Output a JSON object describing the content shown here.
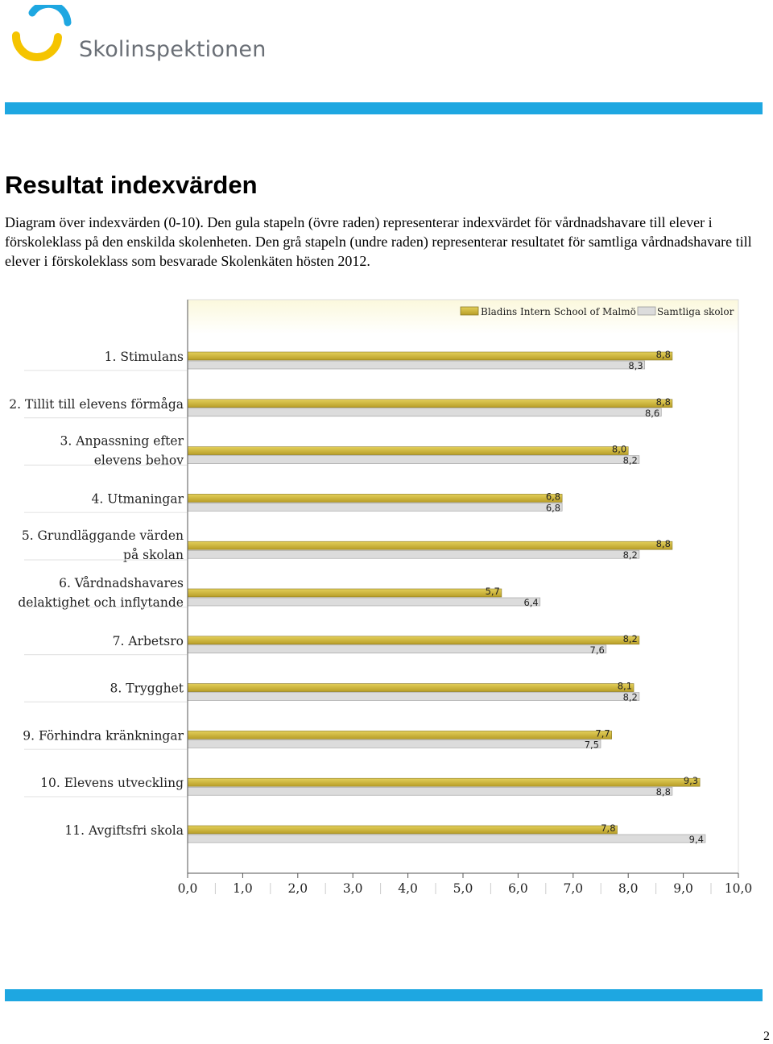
{
  "header": {
    "logo_text": "Skolinspektionen",
    "logo_icon": "skolinspektionen-logo-icon",
    "brand_blue": "#1ea7e1",
    "brand_yellow": "#f5c400"
  },
  "main": {
    "title": "Resultat indexvärden",
    "description": "Diagram över indexvärden (0-10). Den gula stapeln (övre raden) representerar indexvärdet för vårdnadshavare till elever i förskoleklass på den enskilda skolenheten. Den grå stapeln (undre raden) representerar resultatet för samtliga vårdnadshavare till elever i förskoleklass som besvarade Skolenkäten hösten 2012."
  },
  "chart_data": {
    "type": "bar",
    "orientation": "horizontal",
    "categories": [
      [
        "1. Stimulans"
      ],
      [
        "2. Tillit till elevens förmåga"
      ],
      [
        "3. Anpassning efter",
        "elevens behov"
      ],
      [
        "4. Utmaningar"
      ],
      [
        "5. Grundläggande värden",
        "på skolan"
      ],
      [
        "6. Vårdnadshavares",
        "delaktighet och inflytande"
      ],
      [
        "7. Arbetsro"
      ],
      [
        "8. Trygghet"
      ],
      [
        "9. Förhindra kränkningar"
      ],
      [
        "10. Elevens utveckling"
      ],
      [
        "11. Avgiftsfri skola"
      ]
    ],
    "series": [
      {
        "name": "Bladins Intern School of Malmö",
        "color": "#c9b037",
        "values": [
          8.8,
          8.8,
          8.0,
          6.8,
          8.8,
          5.7,
          8.2,
          8.1,
          7.7,
          9.3,
          7.8
        ],
        "labels": [
          "8,8",
          "8,8",
          "8,0",
          "6,8",
          "8,8",
          "5,7",
          "8,2",
          "8,1",
          "7,7",
          "9,3",
          "7,8"
        ]
      },
      {
        "name": "Samtliga skolor",
        "color": "#dcdcdc",
        "values": [
          8.3,
          8.6,
          8.2,
          6.8,
          8.2,
          6.4,
          7.6,
          8.2,
          7.5,
          8.8,
          9.4
        ],
        "labels": [
          "8,3",
          "8,6",
          "8,2",
          "6,8",
          "8,2",
          "6,4",
          "7,6",
          "8,2",
          "7,5",
          "8,8",
          "9,4"
        ]
      }
    ],
    "xlim": [
      0,
      10
    ],
    "xticks": [
      "0,0",
      "1,0",
      "2,0",
      "3,0",
      "4,0",
      "5,0",
      "6,0",
      "7,0",
      "8,0",
      "9,0",
      "10,0"
    ],
    "legend_position": "top-right",
    "grid": false
  },
  "footer": {
    "page_number": "2"
  }
}
